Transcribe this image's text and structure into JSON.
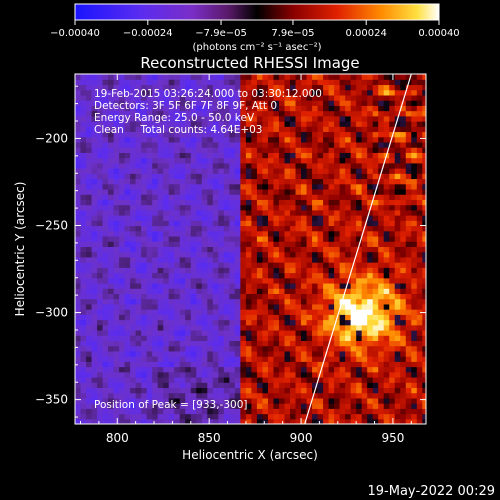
{
  "chart_data": {
    "type": "heatmap",
    "title": "Reconstructed RHESSI Image",
    "xlabel": "Heliocentric X (arcsec)",
    "ylabel": "Heliocentric Y (arcsec)",
    "xlim": [
      777,
      968
    ],
    "ylim": [
      -364,
      -163
    ],
    "x_ticks": [
      800,
      850,
      900,
      950
    ],
    "y_ticks": [
      -200,
      -250,
      -300,
      -350
    ],
    "x_tick_labels": [
      "800",
      "850",
      "900",
      "950"
    ],
    "y_tick_labels": [
      "−200",
      "−250",
      "−300",
      "−350"
    ],
    "colorbar": {
      "range": [
        -0.0004,
        0.0004
      ],
      "ticks": [
        -0.0004,
        -0.00024,
        -7.9e-05,
        7.9e-05,
        0.00024,
        0.0004
      ],
      "tick_labels": [
        "−0.00040",
        "−0.00024",
        "−7.9e−05",
        "7.9e−05",
        "0.00024",
        "0.00040"
      ],
      "units_label": "(photons cm⁻² s⁻¹ asec⁻²)"
    },
    "annotations": {
      "time_range": "19‐Feb‐2015 03:26:24.000 to 03:30:12.000",
      "detectors": "Detectors: 3F 5F 6F 7F 8F 9F, Att 0",
      "energy_range": "Energy Range: 25.0 ‐ 50.0 keV",
      "clean_counts": "Clean     Total counts: 4.64E+03",
      "peak_position": "Position of Peak = [933,‐300]"
    },
    "peak": {
      "x": 933,
      "y": -300
    },
    "limb_line": [
      {
        "x": 902,
        "y": -364
      },
      {
        "x": 960,
        "y": -163
      }
    ],
    "grid": false
  },
  "footer": {
    "timestamp": "19‐May‐2022 00:29"
  }
}
